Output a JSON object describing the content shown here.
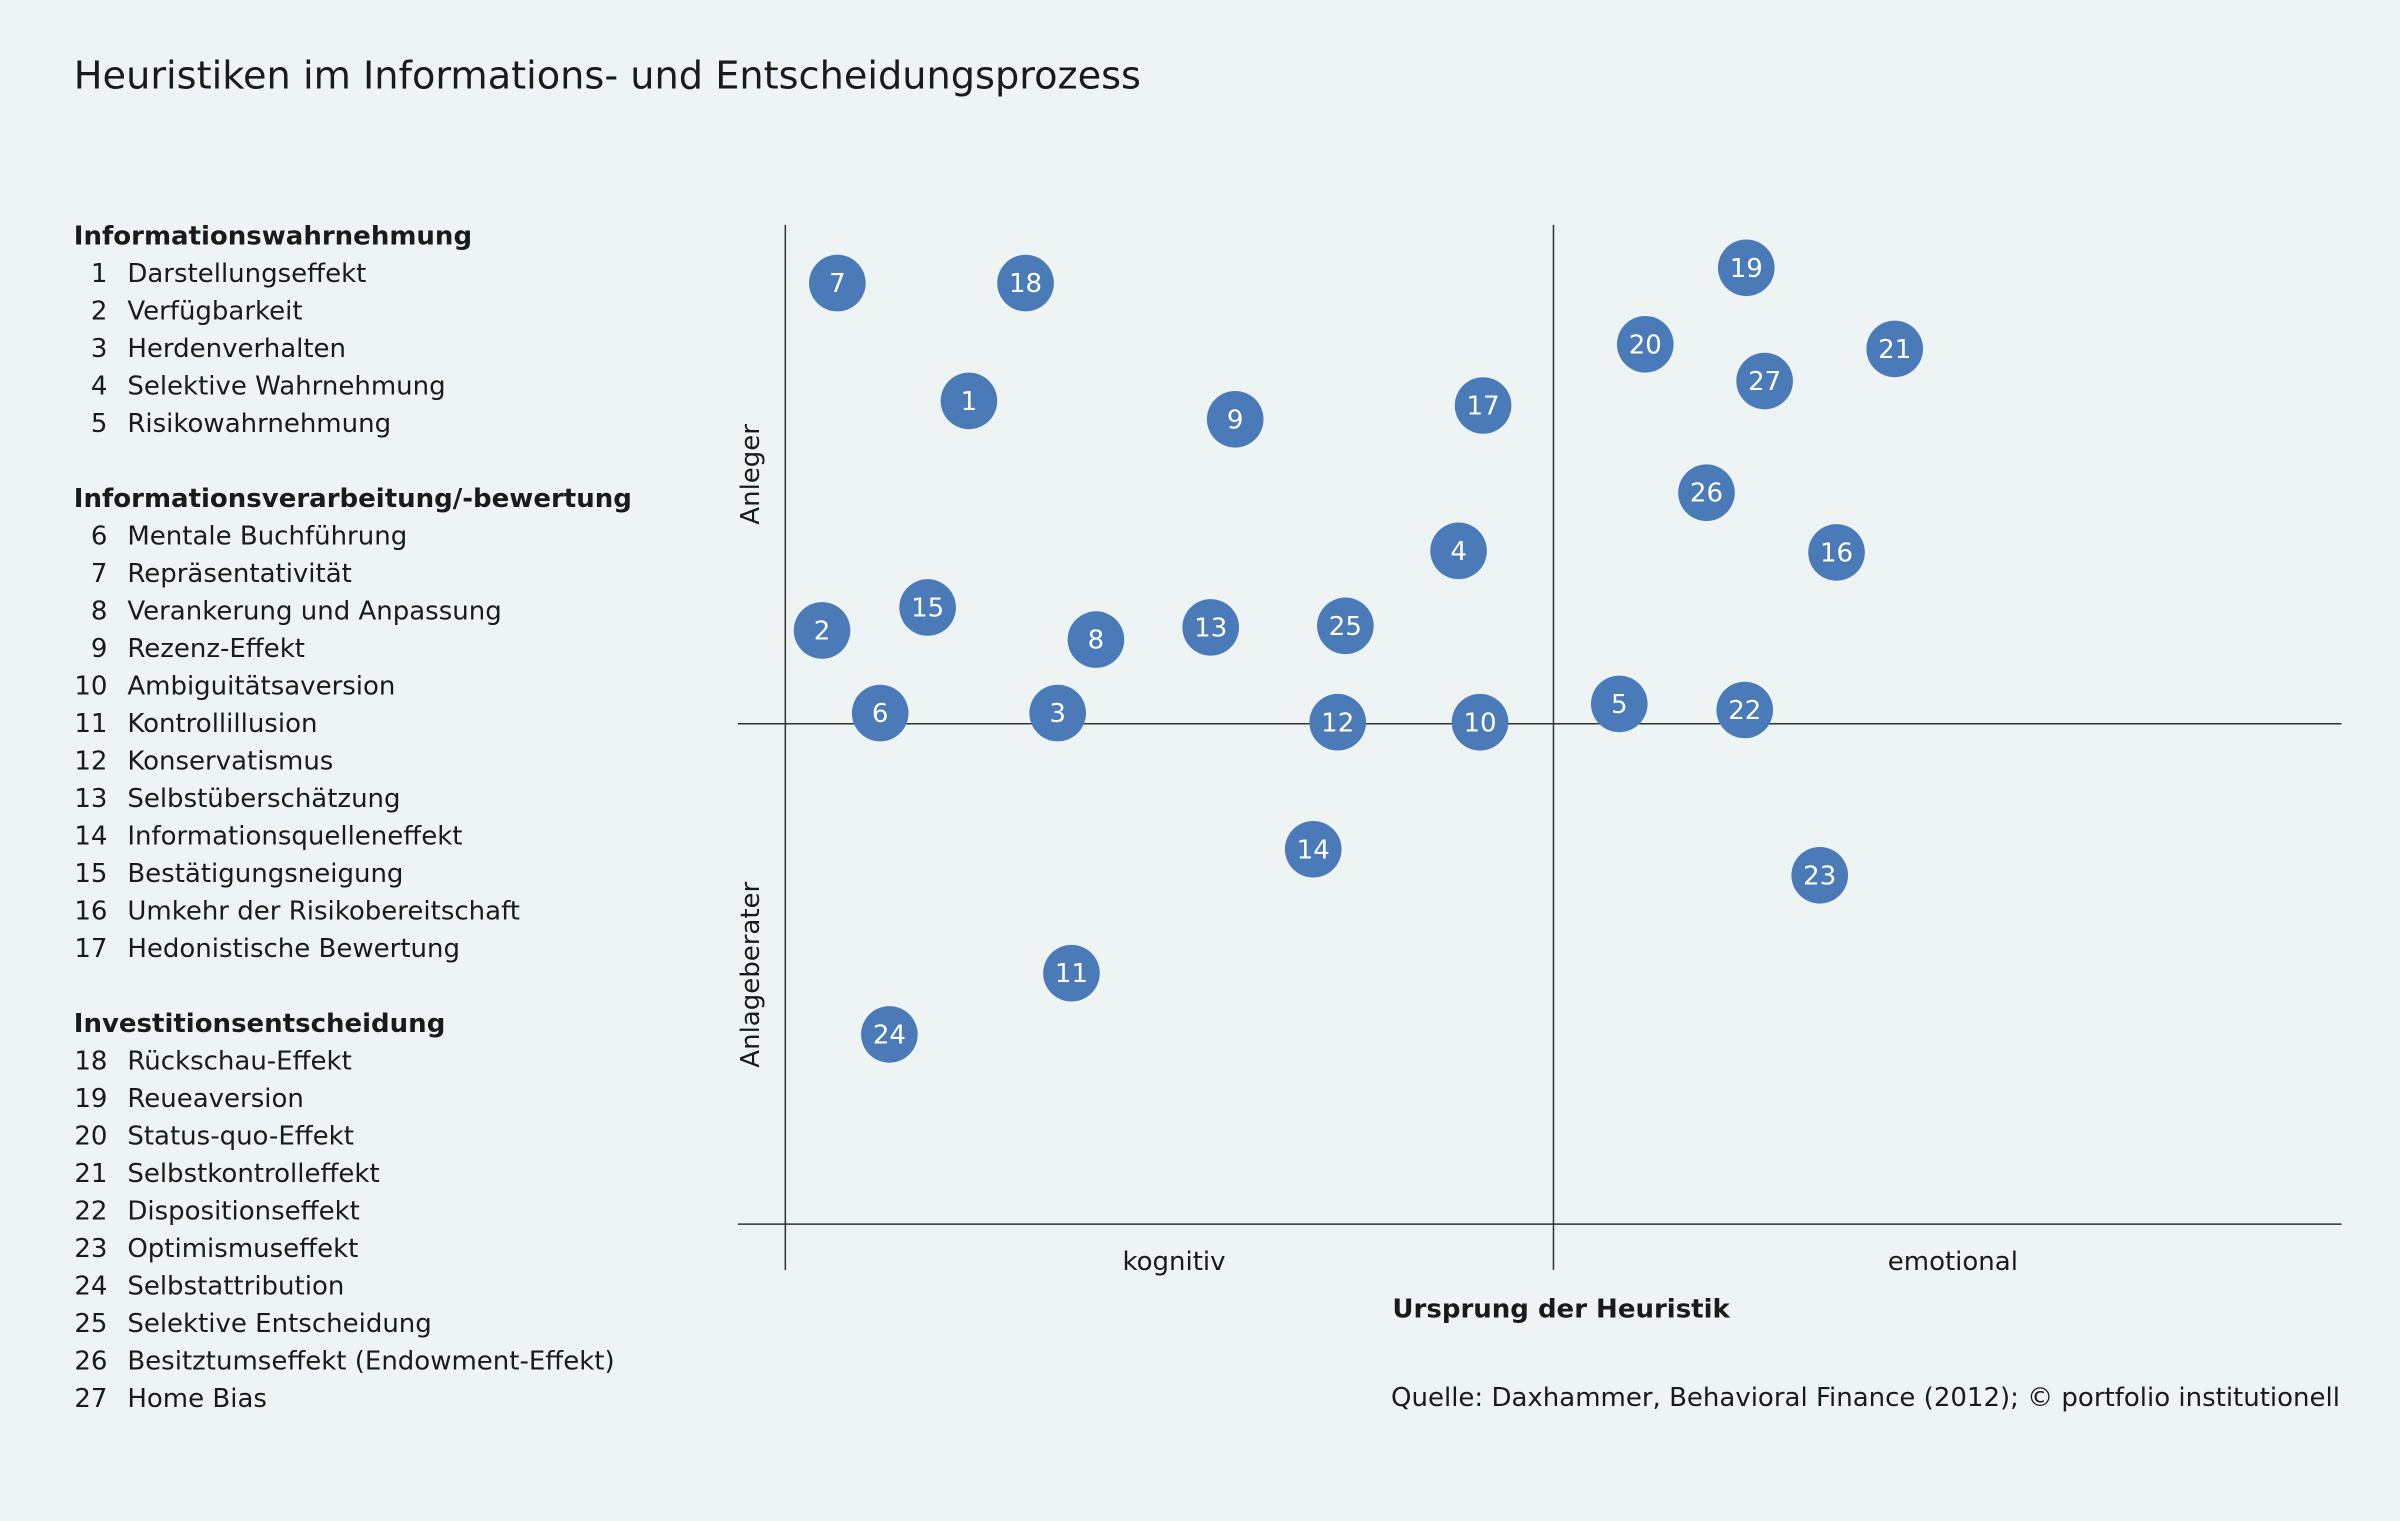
{
  "title": "Heuristiken im Informations- und Entscheidungsprozess",
  "legend": [
    {
      "heading": "Informationswahrnehmung",
      "items": [
        {
          "number": "1",
          "name": "Darstellungseffekt"
        },
        {
          "number": "2",
          "name": "Verfügbarkeit"
        },
        {
          "number": "3",
          "name": "Herdenverhalten"
        },
        {
          "number": "4",
          "name": "Selektive Wahrnehmung"
        },
        {
          "number": "5",
          "name": "Risikowahrnehmung"
        }
      ]
    },
    {
      "heading": "Informationsverarbeitung/-bewertung",
      "items": [
        {
          "number": "6",
          "name": "Mentale Buchführung"
        },
        {
          "number": "7",
          "name": "Repräsentativität"
        },
        {
          "number": "8",
          "name": "Verankerung und Anpassung"
        },
        {
          "number": "9",
          "name": "Rezenz-Effekt"
        },
        {
          "number": "10",
          "name": "Ambiguitätsaversion"
        },
        {
          "number": "11",
          "name": "Kontrollillusion"
        },
        {
          "number": "12",
          "name": "Konservatismus"
        },
        {
          "number": "13",
          "name": "Selbstüberschätzung"
        },
        {
          "number": "14",
          "name": "Informationsquelleneffekt"
        },
        {
          "number": "15",
          "name": "Bestätigungsneigung"
        },
        {
          "number": "16",
          "name": "Umkehr der Risikobereitschaft"
        },
        {
          "number": "17",
          "name": "Hedonistische Bewertung"
        }
      ]
    },
    {
      "heading": "Investitionsentscheidung",
      "items": [
        {
          "number": "18",
          "name": "Rückschau-Effekt"
        },
        {
          "number": "19",
          "name": "Reueaversion"
        },
        {
          "number": "20",
          "name": "Status-quo-Effekt"
        },
        {
          "number": "21",
          "name": "Selbstkontrolleffekt"
        },
        {
          "number": "22",
          "name": "Dispositionseffekt"
        },
        {
          "number": "23",
          "name": "Optimismuseffekt"
        },
        {
          "number": "24",
          "name": "Selbstattribution"
        },
        {
          "number": "25",
          "name": "Selektive Entscheidung"
        },
        {
          "number": "26",
          "name": "Besitztumseffekt (Endowment-Effekt)"
        },
        {
          "number": "27",
          "name": "Home Bias"
        }
      ]
    }
  ],
  "map": {
    "y_top": "Anleger",
    "y_bottom": "Anlageberater",
    "x_left": "kognitiv",
    "x_right": "emotional",
    "x_title": "Ursprung der Heuristik",
    "bubbles": [
      "1",
      "2",
      "3",
      "4",
      "5",
      "6",
      "7",
      "8",
      "9",
      "10",
      "11",
      "12",
      "13",
      "14",
      "15",
      "16",
      "17",
      "18",
      "19",
      "20",
      "21",
      "22",
      "23",
      "24",
      "25",
      "26",
      "27"
    ]
  },
  "source": "Quelle: Daxhammer, Behavioral Finance (2012); © portfolio institutionell"
}
